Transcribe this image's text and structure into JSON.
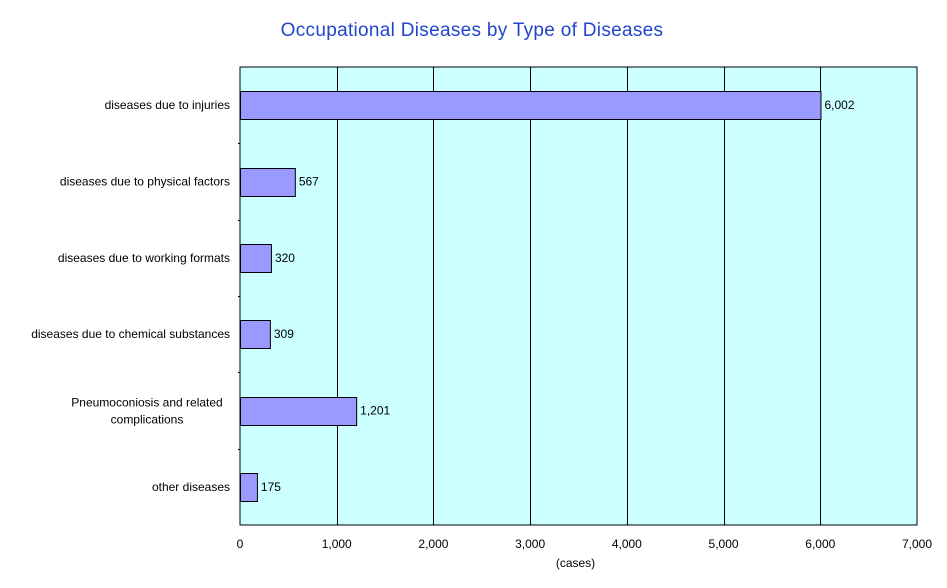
{
  "chart_data": {
    "type": "bar",
    "orientation": "horizontal",
    "title": "Occupational Diseases by Type of Diseases",
    "xlabel": "(cases)",
    "ylabel": "",
    "categories": [
      "diseases due to injuries",
      "diseases due to physical factors",
      "diseases due to working formats",
      "diseases due to chemical substances",
      "Pneumoconiosis and related complications",
      "other diseases"
    ],
    "values": [
      6002,
      567,
      320,
      309,
      1201,
      175
    ],
    "value_labels": [
      "6,002",
      "567",
      "320",
      "309",
      "1,201",
      "175"
    ],
    "xlim": [
      0,
      7000
    ],
    "xticks": [
      0,
      1000,
      2000,
      3000,
      4000,
      5000,
      6000,
      7000
    ],
    "xtick_labels": [
      "0",
      "1,000",
      "2,000",
      "3,000",
      "4,000",
      "5,000",
      "6,000",
      "7,000"
    ],
    "grid": true,
    "legend": "none",
    "colors": {
      "plot_background": "#ccffff",
      "bar_fill": "#9999ff",
      "bar_stroke": "#000000",
      "gridline": "#000000",
      "title": "#2244cc"
    }
  }
}
